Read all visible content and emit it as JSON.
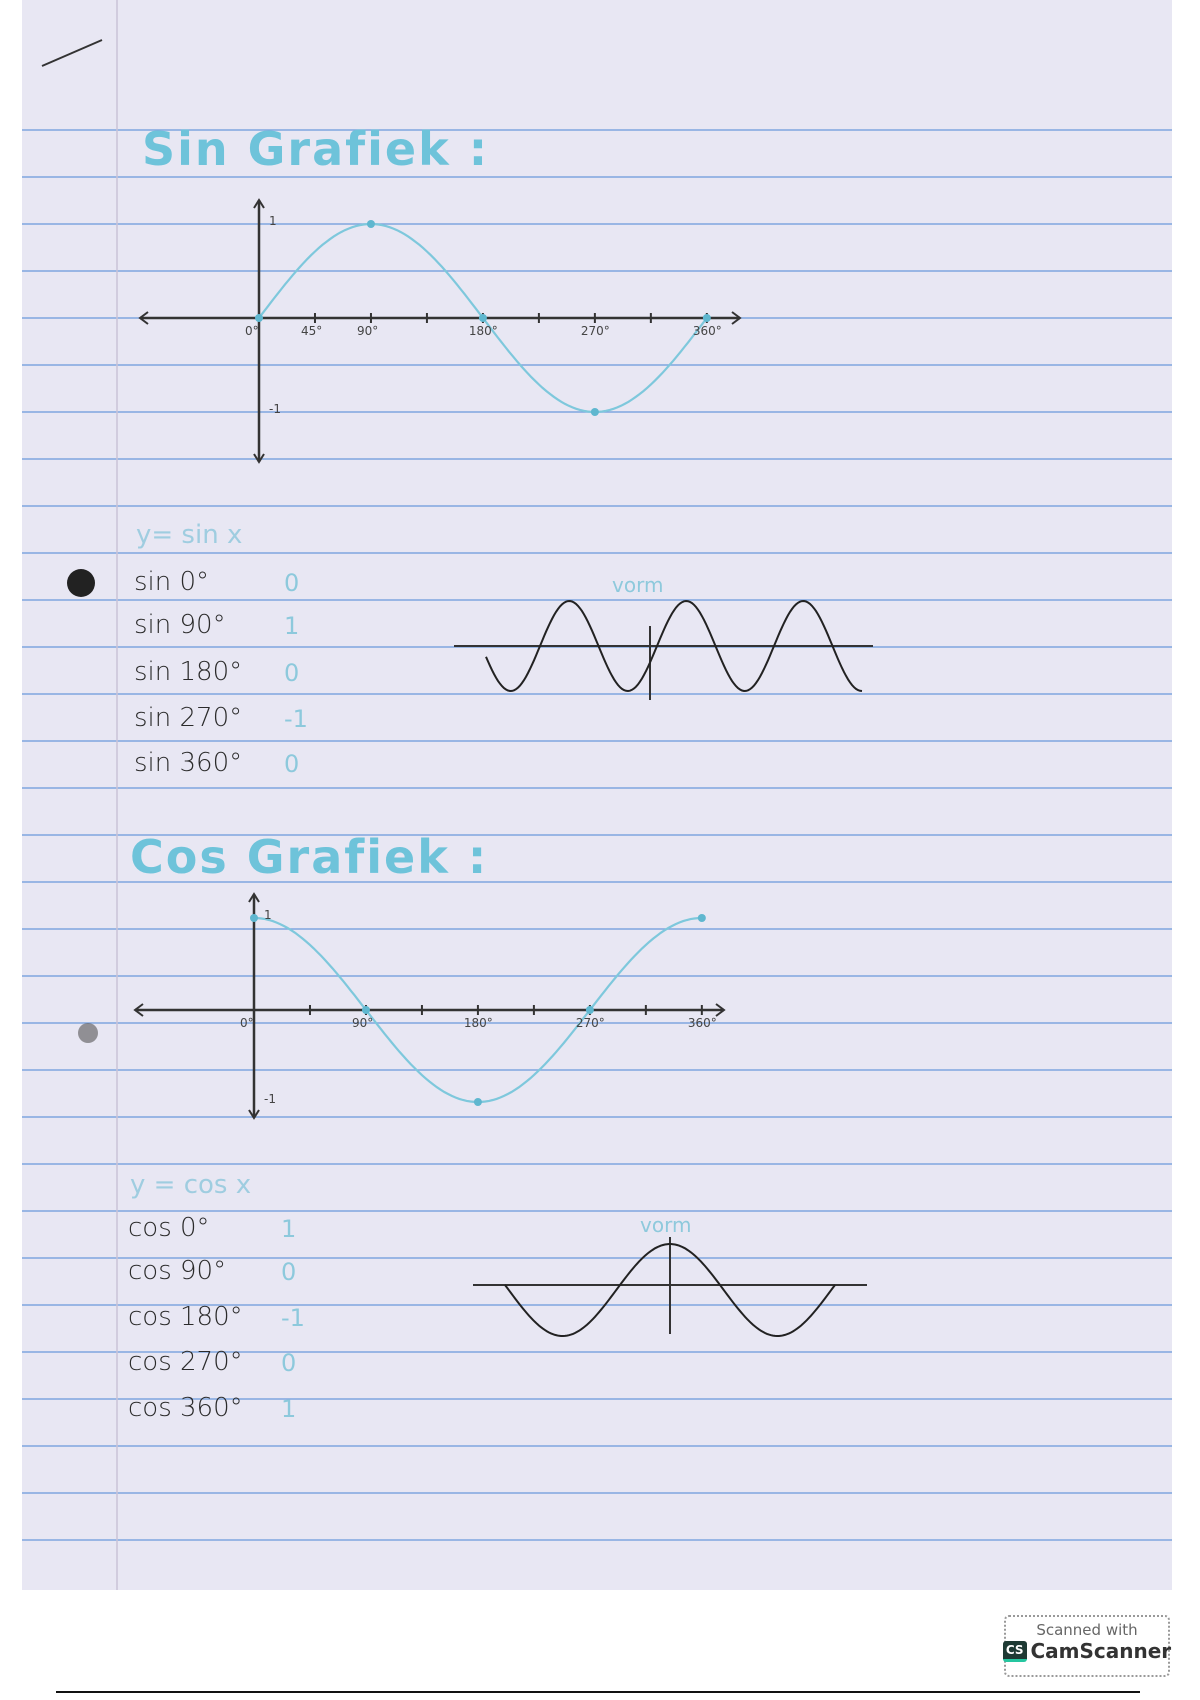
{
  "sin_section": {
    "title": "Sin Grafiek :",
    "graph": {
      "x_ticks": [
        "0°",
        "45°",
        "90°",
        "180°",
        "270°",
        "360°"
      ],
      "y_ticks": [
        "1",
        "-1"
      ],
      "points": [
        [
          0,
          0
        ],
        [
          90,
          1
        ],
        [
          180,
          0
        ],
        [
          270,
          -1
        ],
        [
          360,
          0
        ]
      ]
    },
    "formula": "y= sin x",
    "rows": [
      {
        "expr": "sin 0°",
        "value": "0"
      },
      {
        "expr": "sin 90°",
        "value": "1"
      },
      {
        "expr": "sin 180°",
        "value": "0"
      },
      {
        "expr": "sin 270°",
        "value": "-1"
      },
      {
        "expr": "sin 360°",
        "value": "0"
      }
    ],
    "sketch_label": "vorm"
  },
  "cos_section": {
    "title": "Cos Grafiek :",
    "graph": {
      "x_ticks": [
        "0°",
        "90°",
        "180°",
        "270°",
        "360°"
      ],
      "y_ticks": [
        "1",
        "-1"
      ],
      "points": [
        [
          0,
          1
        ],
        [
          90,
          0
        ],
        [
          180,
          -1
        ],
        [
          270,
          0
        ],
        [
          360,
          1
        ]
      ]
    },
    "formula": "y = cos x",
    "rows": [
      {
        "expr": "cos 0°",
        "value": "1"
      },
      {
        "expr": "cos 90°",
        "value": "0"
      },
      {
        "expr": "cos 180°",
        "value": "-1"
      },
      {
        "expr": "cos 270°",
        "value": "0"
      },
      {
        "expr": "cos 360°",
        "value": "1"
      }
    ],
    "sketch_label": "vorm"
  },
  "colors": {
    "paper": "#e8e7f3",
    "rule": "#7fa6df",
    "ink_blue": "#6ec3da",
    "ink": "#2b2b2b"
  },
  "badge": {
    "line1": "Scanned with",
    "logo": "CS",
    "line2": "CamScanner"
  }
}
